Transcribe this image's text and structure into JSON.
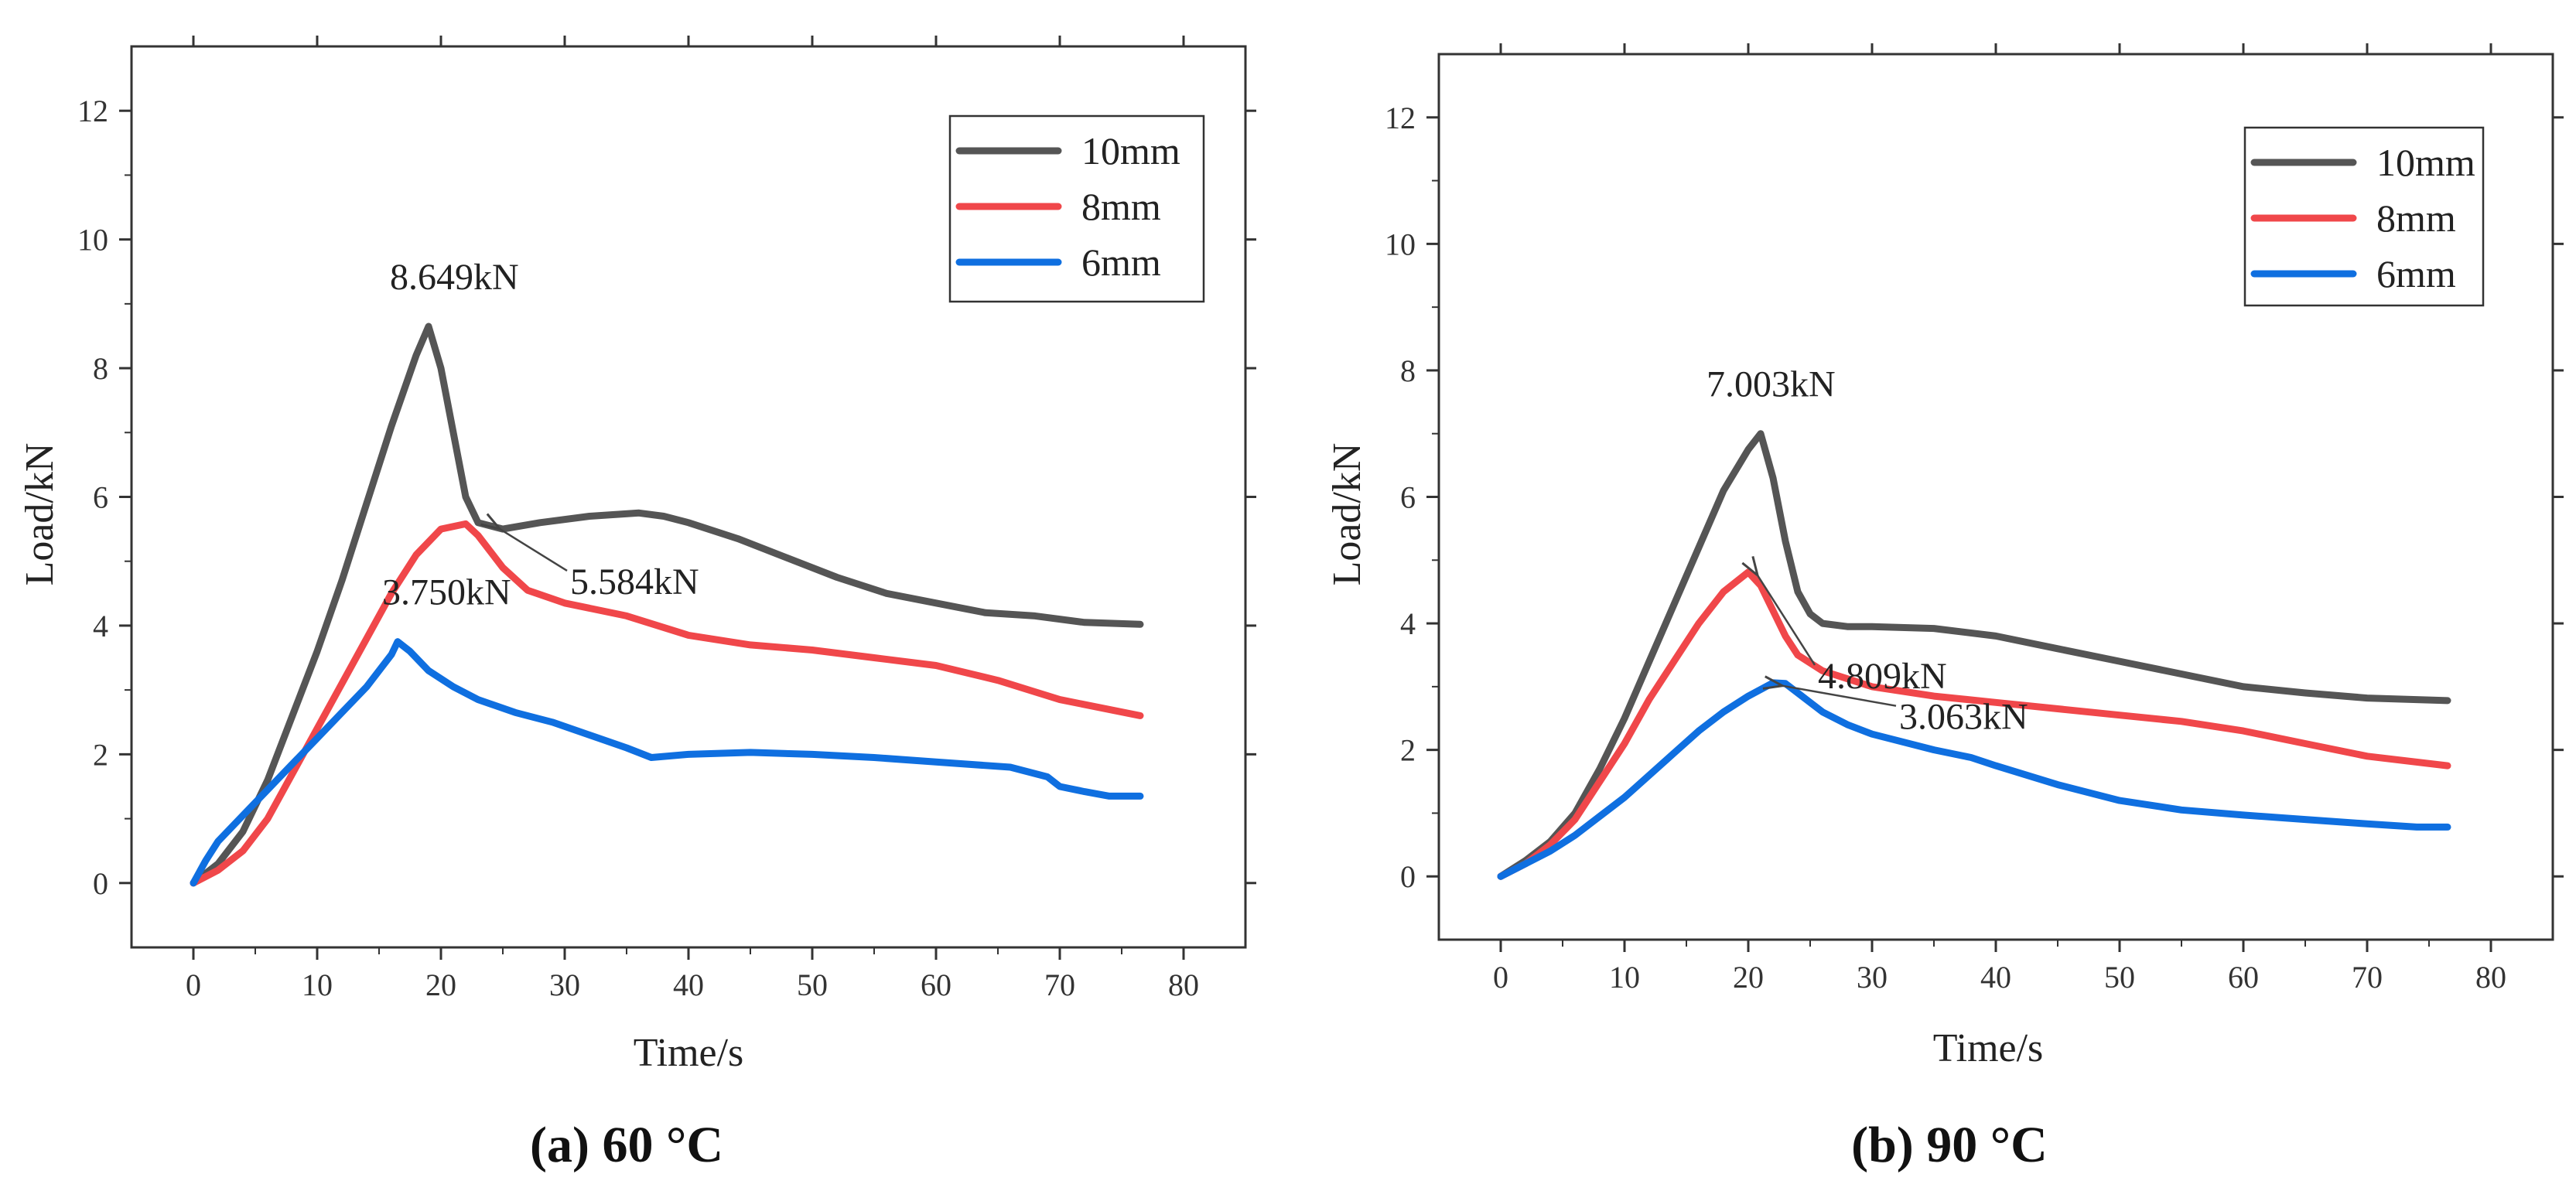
{
  "colors": {
    "10mm": "#555555",
    "8mm": "#f0474a",
    "6mm": "#0f6fe0",
    "axis": "#333333",
    "annotation_arrow": "#444444"
  },
  "chart_data": [
    {
      "type": "line",
      "panel": "a",
      "caption": "(a) 60 °C",
      "xlabel": "Time/s",
      "ylabel": "Load/kN",
      "xlim": [
        -5,
        85
      ],
      "ylim": [
        -1,
        13
      ],
      "xticks": [
        0,
        10,
        20,
        30,
        40,
        50,
        60,
        70,
        80
      ],
      "yticks": [
        0,
        2,
        4,
        6,
        8,
        10,
        12
      ],
      "legend_position": "top-right",
      "series": [
        {
          "name": "10mm",
          "x": [
            0,
            2,
            4,
            6,
            8,
            10,
            12,
            14,
            16,
            18,
            19,
            20,
            21,
            22,
            23,
            25,
            28,
            32,
            36,
            38,
            40,
            44,
            48,
            52,
            56,
            60,
            64,
            68,
            72,
            76.5
          ],
          "y": [
            0,
            0.3,
            0.8,
            1.6,
            2.6,
            3.6,
            4.7,
            5.9,
            7.1,
            8.2,
            8.65,
            8.0,
            7.0,
            6.0,
            5.6,
            5.5,
            5.6,
            5.7,
            5.75,
            5.7,
            5.6,
            5.35,
            5.05,
            4.75,
            4.5,
            4.35,
            4.2,
            4.15,
            4.05,
            4.02
          ]
        },
        {
          "name": "8mm",
          "x": [
            0,
            2,
            4,
            6,
            8,
            10,
            12,
            14,
            16,
            18,
            20,
            22,
            23,
            25,
            27,
            30,
            35,
            40,
            45,
            50,
            55,
            60,
            65,
            70,
            76.5
          ],
          "y": [
            0,
            0.2,
            0.5,
            1.0,
            1.7,
            2.4,
            3.1,
            3.8,
            4.5,
            5.1,
            5.5,
            5.58,
            5.4,
            4.9,
            4.55,
            4.35,
            4.15,
            3.85,
            3.7,
            3.62,
            3.5,
            3.38,
            3.15,
            2.85,
            2.6
          ]
        },
        {
          "name": "6mm",
          "x": [
            0,
            1,
            2,
            4,
            6,
            8,
            10,
            12,
            14,
            16,
            16.5,
            17.5,
            19,
            21,
            23,
            26,
            29,
            32,
            35,
            37,
            40,
            45,
            50,
            55,
            60,
            66,
            69,
            70,
            72,
            74,
            76.5
          ],
          "y": [
            0,
            0.35,
            0.65,
            1.05,
            1.45,
            1.85,
            2.25,
            2.65,
            3.05,
            3.55,
            3.75,
            3.6,
            3.3,
            3.05,
            2.85,
            2.65,
            2.5,
            2.3,
            2.1,
            1.95,
            2.0,
            2.03,
            2.0,
            1.95,
            1.88,
            1.8,
            1.65,
            1.5,
            1.42,
            1.35,
            1.35
          ]
        }
      ],
      "annotations": [
        {
          "text": "8.649kN",
          "x": 19,
          "y": 8.649,
          "arrow": false
        },
        {
          "text": "5.584kN",
          "x": 24.5,
          "y": 5.55,
          "arrow": true
        },
        {
          "text": "3.750kN",
          "x": 16.5,
          "y": 3.75,
          "arrow": false
        }
      ]
    },
    {
      "type": "line",
      "panel": "b",
      "caption": "(b) 90 °C",
      "xlabel": "Time/s",
      "ylabel": "Load/kN",
      "xlim": [
        -5,
        85
      ],
      "ylim": [
        -1,
        13
      ],
      "xticks": [
        0,
        10,
        20,
        30,
        40,
        50,
        60,
        70,
        80
      ],
      "yticks": [
        0,
        2,
        4,
        6,
        8,
        10,
        12
      ],
      "legend_position": "top-right",
      "series": [
        {
          "name": "10mm",
          "x": [
            0,
            2,
            4,
            6,
            8,
            10,
            12,
            14,
            16,
            18,
            20,
            21,
            22,
            23,
            24,
            25,
            26,
            28,
            30,
            35,
            40,
            45,
            50,
            55,
            60,
            65,
            70,
            76.5
          ],
          "y": [
            0,
            0.25,
            0.55,
            1.0,
            1.7,
            2.5,
            3.4,
            4.3,
            5.2,
            6.1,
            6.75,
            7.0,
            6.3,
            5.3,
            4.5,
            4.15,
            4.0,
            3.95,
            3.95,
            3.92,
            3.8,
            3.6,
            3.4,
            3.2,
            3.0,
            2.9,
            2.82,
            2.78
          ]
        },
        {
          "name": "8mm",
          "x": [
            0,
            2,
            4,
            6,
            8,
            10,
            12,
            14,
            16,
            18,
            20,
            21,
            22,
            23,
            24,
            26,
            30,
            35,
            40,
            45,
            50,
            55,
            60,
            65,
            70,
            76.5
          ],
          "y": [
            0,
            0.2,
            0.5,
            0.9,
            1.5,
            2.1,
            2.8,
            3.4,
            4.0,
            4.5,
            4.81,
            4.6,
            4.2,
            3.8,
            3.5,
            3.25,
            3.0,
            2.85,
            2.75,
            2.65,
            2.55,
            2.45,
            2.3,
            2.1,
            1.9,
            1.75
          ]
        },
        {
          "name": "6mm",
          "x": [
            0,
            2,
            4,
            6,
            8,
            10,
            12,
            14,
            16,
            18,
            20,
            22,
            23,
            24,
            25,
            26,
            28,
            30,
            35,
            38,
            40,
            45,
            50,
            55,
            60,
            65,
            70,
            74,
            76.5
          ],
          "y": [
            0,
            0.2,
            0.4,
            0.65,
            0.95,
            1.25,
            1.6,
            1.95,
            2.3,
            2.6,
            2.85,
            3.06,
            3.05,
            2.9,
            2.75,
            2.6,
            2.4,
            2.25,
            2.0,
            1.88,
            1.75,
            1.45,
            1.2,
            1.05,
            0.97,
            0.9,
            0.83,
            0.78,
            0.78
          ]
        }
      ],
      "annotations": [
        {
          "text": "7.003kN",
          "x": 21,
          "y": 7.003,
          "arrow": false
        },
        {
          "text": "4.809kN",
          "x": 20.5,
          "y": 4.809,
          "arrow": true
        },
        {
          "text": "3.063kN",
          "x": 22.5,
          "y": 3.063,
          "arrow": true
        }
      ]
    }
  ]
}
